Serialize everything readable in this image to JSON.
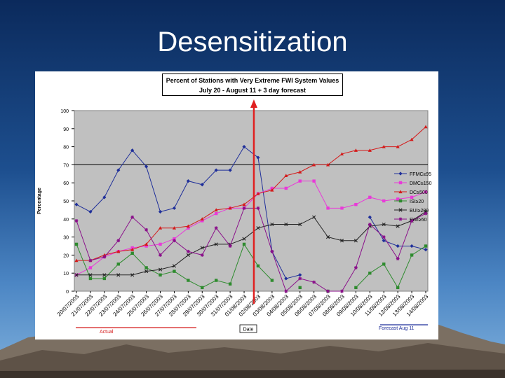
{
  "slide": {
    "title": "Desensitization"
  },
  "colors": {
    "background_top": "#0b2a5c",
    "background_bottom": "#7fb0dc",
    "plot_area": "#c0c0c0",
    "marker_line": "#e02020"
  },
  "chart_data": {
    "type": "line",
    "title": "Percent of Stations with Very Extreme FWI System Values",
    "subtitle": "July 20 - August 11 + 3 day forecast",
    "ylabel": "Percentage",
    "xlabel": "Date",
    "ylim": [
      0,
      100
    ],
    "yticks": [
      0,
      10,
      20,
      30,
      40,
      50,
      60,
      70,
      80,
      90,
      100
    ],
    "reference_line": 70,
    "grid": false,
    "legend_position": "right",
    "annotations": {
      "actual": "Actual",
      "forecast": "Forecast Aug 11"
    },
    "categories": [
      "20/07/2003",
      "21/07/2003",
      "22/07/2003",
      "23/07/2003",
      "24/07/2003",
      "25/07/2003",
      "26/07/2003",
      "27/07/2003",
      "28/07/2003",
      "29/07/2003",
      "30/07/2003",
      "31/07/2003",
      "01/08/2003",
      "02/08/2003",
      "03/08/2003",
      "04/08/2003",
      "05/08/2003",
      "06/08/2003",
      "07/08/2003",
      "08/08/2003",
      "09/08/2003",
      "10/08/2003",
      "11/08/2003",
      "12/08/2003",
      "13/08/2003",
      "14/08/2003"
    ],
    "series": [
      {
        "name": "FFMC≥95",
        "color": "#1f2f9a",
        "marker": "diamond",
        "values": [
          48,
          44,
          52,
          67,
          78,
          69,
          44,
          46,
          61,
          59,
          67,
          67,
          80,
          74,
          22,
          7,
          9,
          null,
          null,
          null,
          null,
          41,
          28,
          25,
          25,
          23
        ]
      },
      {
        "name": "DMC≥150",
        "color": "#e83ad8",
        "marker": "square",
        "values": [
          9,
          13,
          19,
          22,
          24,
          25,
          26,
          29,
          35,
          39,
          43,
          46,
          46,
          54,
          57,
          57,
          61,
          61,
          46,
          46,
          48,
          52,
          50,
          51,
          52,
          55
        ]
      },
      {
        "name": "DC≥500",
        "color": "#d41a1a",
        "marker": "triangle",
        "values": [
          17,
          17,
          20,
          22,
          23,
          26,
          35,
          35,
          36,
          40,
          45,
          46,
          48,
          54,
          56,
          64,
          66,
          70,
          70,
          76,
          78,
          78,
          80,
          80,
          84,
          91
        ]
      },
      {
        "name": "ISI≥20",
        "color": "#2e8b2e",
        "marker": "square",
        "values": [
          26,
          7,
          7,
          15,
          21,
          13,
          9,
          11,
          6,
          2,
          6,
          4,
          26,
          14,
          6,
          null,
          2,
          null,
          0,
          null,
          2,
          10,
          15,
          2,
          20,
          25
        ]
      },
      {
        "name": "BUI≥200",
        "color": "#222222",
        "marker": "x",
        "values": [
          9,
          9,
          9,
          9,
          9,
          11,
          12,
          14,
          20,
          24,
          26,
          26,
          29,
          35,
          37,
          37,
          37,
          41,
          30,
          28,
          28,
          36,
          37,
          36,
          39,
          44
        ]
      },
      {
        "name": "FWI≥50",
        "color": "#8a0f8a",
        "marker": "star",
        "values": [
          39,
          17,
          19,
          28,
          41,
          34,
          20,
          28,
          22,
          20,
          35,
          25,
          46,
          46,
          22,
          0,
          7,
          5,
          0,
          0,
          13,
          37,
          30,
          18,
          39,
          43
        ]
      }
    ]
  }
}
